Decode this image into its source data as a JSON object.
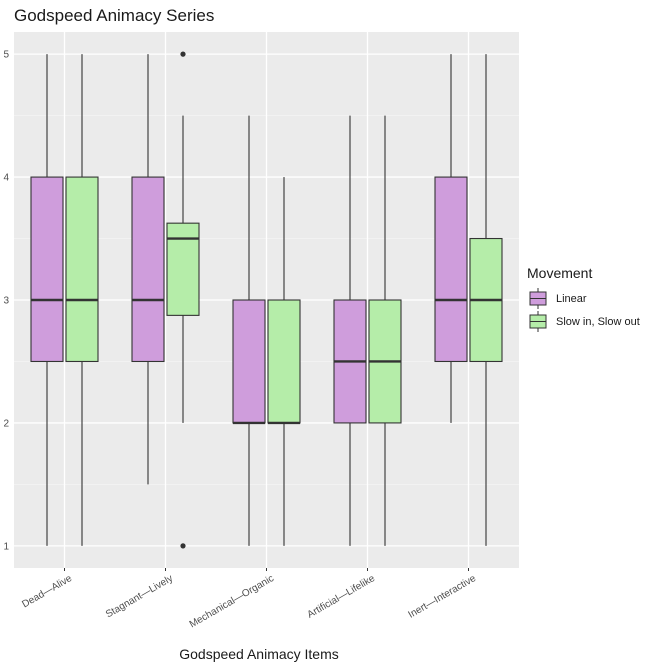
{
  "chart_data": {
    "type": "box",
    "title": "Godspeed Animacy Series",
    "xlabel": "Godspeed Animacy Items",
    "ylabel": "",
    "ylim": [
      0.82,
      5.18
    ],
    "y_ticks": [
      1,
      2,
      3,
      4,
      5
    ],
    "categories": [
      "Dead—Alive",
      "Stagnant—Lively",
      "Mechanical—Organic",
      "Artificial—Lifelike",
      "Inert—Interactive"
    ],
    "grid": true,
    "legend": {
      "title": "Movement",
      "position": "right"
    },
    "series": [
      {
        "name": "Linear",
        "color": "#cf9ddc",
        "boxes": [
          {
            "min": 1,
            "q1": 2.5,
            "median": 3,
            "q3": 4,
            "max": 5,
            "outliers": []
          },
          {
            "min": 1.5,
            "q1": 2.5,
            "median": 3,
            "q3": 4,
            "max": 5,
            "outliers": []
          },
          {
            "min": 1,
            "q1": 2,
            "median": 2,
            "q3": 3,
            "max": 4.5,
            "outliers": []
          },
          {
            "min": 1,
            "q1": 2,
            "median": 2.5,
            "q3": 3,
            "max": 4.5,
            "outliers": []
          },
          {
            "min": 2,
            "q1": 2.5,
            "median": 3,
            "q3": 4,
            "max": 5,
            "outliers": []
          }
        ]
      },
      {
        "name": "Slow in, Slow out",
        "color": "#b5eda9",
        "boxes": [
          {
            "min": 1,
            "q1": 2.5,
            "median": 3,
            "q3": 4,
            "max": 5,
            "outliers": []
          },
          {
            "min": 2,
            "q1": 2.875,
            "median": 3.5,
            "q3": 3.625,
            "max": 4.5,
            "outliers": [
              1,
              5
            ]
          },
          {
            "min": 1,
            "q1": 2,
            "median": 2,
            "q3": 3,
            "max": 4,
            "outliers": []
          },
          {
            "min": 1,
            "q1": 2,
            "median": 2.5,
            "q3": 3,
            "max": 4.5,
            "outliers": []
          },
          {
            "min": 1,
            "q1": 2.5,
            "median": 3,
            "q3": 3.5,
            "max": 5,
            "outliers": []
          }
        ]
      }
    ]
  }
}
